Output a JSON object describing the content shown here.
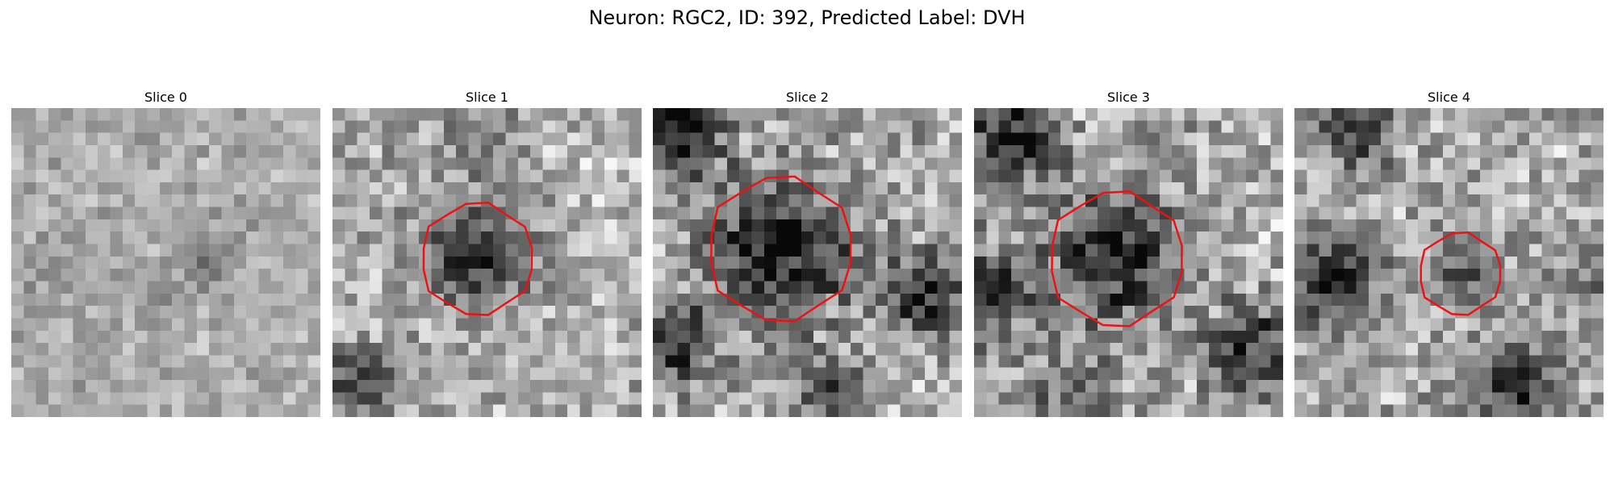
{
  "figure": {
    "title": "Neuron: RGC2, ID: 392, Predicted Label: DVH",
    "contour_color": "#ee1111",
    "panels": [
      {
        "label": "Slice 0",
        "seed": 11,
        "contrast": 0.55,
        "blobs": [
          {
            "cx": 16,
            "cy": 12,
            "r": 2.2,
            "d": -0.25
          },
          {
            "cx": 12,
            "cy": 15,
            "r": 2.5,
            "d": -0.1
          },
          {
            "cx": 4,
            "cy": 12,
            "r": 3,
            "d": -0.12
          }
        ],
        "contour": null
      },
      {
        "label": "Slice 1",
        "seed": 23,
        "contrast": 1.0,
        "blobs": [
          {
            "cx": 12,
            "cy": 12,
            "r": 3.8,
            "d": -0.55
          },
          {
            "cx": 2,
            "cy": 22,
            "r": 2.5,
            "d": -0.45
          },
          {
            "cx": 12,
            "cy": 2,
            "r": 3,
            "d": -0.2
          },
          {
            "cx": 22,
            "cy": 6,
            "r": 3,
            "d": 0.12
          }
        ],
        "contour": {
          "cx": 11.7,
          "cy": 12.2,
          "r": 4.5
        }
      },
      {
        "label": "Slice 2",
        "seed": 37,
        "contrast": 1.2,
        "blobs": [
          {
            "cx": 10.5,
            "cy": 11.5,
            "r": 5.2,
            "d": -0.6
          },
          {
            "cx": 2,
            "cy": 2,
            "r": 3.6,
            "d": -0.6
          },
          {
            "cx": 2,
            "cy": 19,
            "r": 3.2,
            "d": -0.5
          },
          {
            "cx": 22,
            "cy": 15,
            "r": 3.2,
            "d": -0.55
          },
          {
            "cx": 14,
            "cy": 23,
            "r": 2.5,
            "d": -0.35
          }
        ],
        "contour": {
          "cx": 10.3,
          "cy": 11.4,
          "r": 5.8
        }
      },
      {
        "label": "Slice 3",
        "seed": 41,
        "contrast": 1.2,
        "blobs": [
          {
            "cx": 11.5,
            "cy": 12,
            "r": 4.8,
            "d": -0.6
          },
          {
            "cx": 3,
            "cy": 2.5,
            "r": 3.4,
            "d": -0.6
          },
          {
            "cx": 1.5,
            "cy": 15,
            "r": 3.5,
            "d": -0.45
          },
          {
            "cx": 23,
            "cy": 20,
            "r": 3.8,
            "d": -0.5
          },
          {
            "cx": 8,
            "cy": 23,
            "r": 3,
            "d": -0.35
          }
        ],
        "contour": {
          "cx": 11.5,
          "cy": 12.2,
          "r": 5.4
        }
      },
      {
        "label": "Slice 4",
        "seed": 53,
        "contrast": 1.1,
        "blobs": [
          {
            "cx": 13.5,
            "cy": 13.5,
            "r": 2.6,
            "d": -0.35
          },
          {
            "cx": 3,
            "cy": 14,
            "r": 3.5,
            "d": -0.55
          },
          {
            "cx": 5,
            "cy": 2,
            "r": 3,
            "d": -0.45
          },
          {
            "cx": 18,
            "cy": 23,
            "r": 3.5,
            "d": -0.5
          },
          {
            "cx": 24,
            "cy": 14,
            "r": 2.2,
            "d": -0.3
          }
        ],
        "contour": {
          "cx": 13.4,
          "cy": 13.4,
          "r": 3.3
        }
      }
    ]
  }
}
